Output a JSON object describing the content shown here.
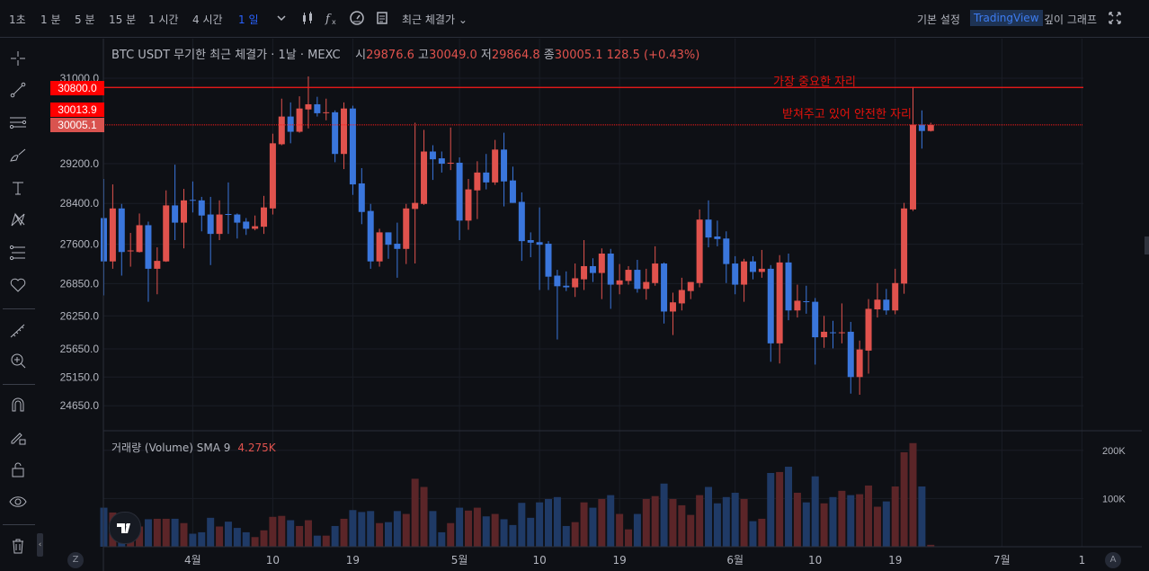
{
  "toolbar": {
    "timeframes": [
      "1초",
      "1 분",
      "5 분",
      "15 분",
      "1 시간",
      "4 시간",
      "1 일"
    ],
    "active_timeframe": "1 일",
    "price_type": "최근 체결가",
    "right": {
      "basic": "기본 설정",
      "tradingview": "TradingView",
      "depth": "깊이 그래프"
    },
    "icons": [
      "chevron-down-icon",
      "candles-icon",
      "fx-icon",
      "gauge-icon",
      "document-icon",
      "fullscreen-icon"
    ]
  },
  "left_tools": [
    "crosshair-icon",
    "trendline-icon",
    "parallel-lines-icon",
    "brush-icon",
    "text-icon",
    "pattern-icon",
    "forecast-icon",
    "heart-icon",
    "ruler-icon",
    "zoom-in-icon",
    "magnet-icon",
    "lock-drawing-icon",
    "unlock-icon",
    "eye-icon",
    "trash-icon"
  ],
  "legend": {
    "title": "BTC USDT 무기한 최근 체결가 · 1날 · MEXC",
    "open_label": "시",
    "open": "29876.6",
    "high_label": "고",
    "high": "30049.0",
    "low_label": "저",
    "low": "29864.8",
    "close_label": "종",
    "close": "30005.1",
    "change": "128.5 (+0.43%)"
  },
  "volume_legend": {
    "label": "거래량 (Volume) SMA 9",
    "value": "4.275K"
  },
  "annotations": {
    "top": "가장 중요한 자리",
    "middle": "받쳐주고 있어 안전한 자리"
  },
  "price_labels": {
    "line_level": "30800.0",
    "mid_level": "30013.9",
    "last_price": "30005.1"
  },
  "axis_buttons": {
    "left": "Z",
    "right": "A"
  },
  "colors": {
    "up": "#e0524d",
    "down": "#3a76dc",
    "vol_up": "#5b2528",
    "vol_down": "#1f3a66",
    "line": "#ff1a1a",
    "background": "#0e1015"
  },
  "chart_data": {
    "type": "candlestick",
    "y_scale": "log",
    "ylim": [
      24500,
      31050
    ],
    "y_ticks": [
      "31000.0",
      "29200.0",
      "28400.0",
      "27600.0",
      "26850.0",
      "26250.0",
      "25650.0",
      "25150.0",
      "24650.0"
    ],
    "x_ticks": [
      "4월",
      "10",
      "19",
      "5월",
      "10",
      "19",
      "6월",
      "10",
      "19",
      "7월",
      "1"
    ],
    "horizontal_lines": [
      30800.0,
      30005.1
    ],
    "grid": true,
    "ohlc": [
      [
        28110,
        28890,
        26630,
        27270
      ],
      [
        27270,
        28780,
        27130,
        28300
      ],
      [
        28300,
        28390,
        27000,
        27450
      ],
      [
        27470,
        27820,
        27170,
        27480
      ],
      [
        27450,
        28200,
        27440,
        27970
      ],
      [
        27970,
        28040,
        26510,
        27130
      ],
      [
        27130,
        27540,
        26650,
        27280
      ],
      [
        27270,
        28660,
        27260,
        28360
      ],
      [
        28360,
        29180,
        27680,
        28020
      ],
      [
        28020,
        28690,
        27520,
        28460
      ],
      [
        28470,
        28840,
        28220,
        28460
      ],
      [
        28460,
        28530,
        27850,
        28160
      ],
      [
        28180,
        28530,
        27200,
        27800
      ],
      [
        27800,
        28460,
        27680,
        28180
      ],
      [
        28190,
        28820,
        27800,
        28180
      ],
      [
        28180,
        28200,
        27710,
        28020
      ],
      [
        28040,
        28110,
        27780,
        27900
      ],
      [
        27900,
        28160,
        27870,
        27950
      ],
      [
        27940,
        28550,
        27800,
        28320
      ],
      [
        28300,
        29820,
        28180,
        29620
      ],
      [
        29600,
        30560,
        29580,
        30180
      ],
      [
        30180,
        30480,
        29620,
        29860
      ],
      [
        29860,
        30610,
        29840,
        30350
      ],
      [
        30330,
        31040,
        29930,
        30440
      ],
      [
        30440,
        30600,
        30180,
        30250
      ],
      [
        30260,
        30560,
        30100,
        30270
      ],
      [
        30270,
        30310,
        29230,
        29400
      ],
      [
        29400,
        30480,
        29090,
        30350
      ],
      [
        30350,
        30410,
        28570,
        28780
      ],
      [
        28800,
        29110,
        27990,
        28230
      ],
      [
        28250,
        28390,
        27130,
        27270
      ],
      [
        27270,
        27900,
        27170,
        27830
      ],
      [
        27830,
        27830,
        27320,
        27590
      ],
      [
        27610,
        28020,
        26960,
        27510
      ],
      [
        27510,
        28390,
        27220,
        28300
      ],
      [
        28290,
        30050,
        27230,
        28410
      ],
      [
        28390,
        29900,
        28370,
        29450
      ],
      [
        29450,
        29580,
        28870,
        29290
      ],
      [
        29310,
        29450,
        29020,
        29200
      ],
      [
        29210,
        29950,
        29070,
        29220
      ],
      [
        29220,
        29330,
        27680,
        28060
      ],
      [
        28060,
        28890,
        27880,
        28680
      ],
      [
        28660,
        29250,
        28090,
        29020
      ],
      [
        29020,
        29400,
        28680,
        28820
      ],
      [
        28820,
        29690,
        28770,
        29490
      ],
      [
        29490,
        29840,
        28340,
        28840
      ],
      [
        28860,
        29140,
        28410,
        28410
      ],
      [
        28430,
        28620,
        27280,
        27660
      ],
      [
        27680,
        27830,
        27350,
        27630
      ],
      [
        27640,
        28320,
        26730,
        27590
      ],
      [
        27610,
        27660,
        26730,
        26980
      ],
      [
        27000,
        27110,
        25820,
        26800
      ],
      [
        26810,
        27080,
        26710,
        26780
      ],
      [
        26780,
        27230,
        26600,
        26950
      ],
      [
        26930,
        27680,
        26730,
        27180
      ],
      [
        27180,
        27330,
        26880,
        27050
      ],
      [
        27050,
        27520,
        26560,
        27420
      ],
      [
        27420,
        27510,
        26380,
        26830
      ],
      [
        26830,
        27220,
        26650,
        26910
      ],
      [
        26900,
        27180,
        26830,
        27110
      ],
      [
        27110,
        27300,
        26680,
        26750
      ],
      [
        26750,
        27130,
        26550,
        26880
      ],
      [
        26860,
        27560,
        26810,
        27230
      ],
      [
        27230,
        27250,
        26110,
        26330
      ],
      [
        26330,
        26680,
        25900,
        26500
      ],
      [
        26480,
        26960,
        26350,
        26730
      ],
      [
        26710,
        26860,
        26560,
        26880
      ],
      [
        26860,
        28280,
        26780,
        28080
      ],
      [
        28080,
        28460,
        27540,
        27730
      ],
      [
        27750,
        28060,
        27560,
        27700
      ],
      [
        27710,
        27850,
        26860,
        27220
      ],
      [
        27230,
        27370,
        26650,
        26830
      ],
      [
        26830,
        27320,
        26510,
        27270
      ],
      [
        27270,
        27370,
        26930,
        27070
      ],
      [
        27070,
        27490,
        26960,
        27130
      ],
      [
        27130,
        27200,
        25420,
        25750
      ],
      [
        25750,
        27390,
        25390,
        27250
      ],
      [
        27250,
        27420,
        26170,
        26350
      ],
      [
        26350,
        26830,
        26220,
        26530
      ],
      [
        26520,
        26810,
        26290,
        26510
      ],
      [
        26510,
        26580,
        25370,
        25860
      ],
      [
        25860,
        26250,
        25670,
        25960
      ],
      [
        25950,
        26160,
        25660,
        25940
      ],
      [
        25940,
        26480,
        25750,
        25950
      ],
      [
        25960,
        26140,
        24860,
        25150
      ],
      [
        25150,
        25800,
        24840,
        25640
      ],
      [
        25620,
        26560,
        25210,
        26380
      ],
      [
        26370,
        26860,
        26220,
        26550
      ],
      [
        26550,
        26750,
        26270,
        26350
      ],
      [
        26350,
        27130,
        26280,
        26860
      ],
      [
        26850,
        28410,
        26660,
        28300
      ],
      [
        28280,
        30810,
        28250,
        30010
      ],
      [
        30010,
        30310,
        29510,
        29876.6
      ],
      [
        29876.6,
        30049.0,
        29864.8,
        30005.1
      ]
    ],
    "volume": {
      "y_ticks": [
        "200K",
        "100K"
      ],
      "values_k": [
        81,
        71,
        60,
        50,
        42,
        57,
        58,
        58,
        58,
        49,
        27,
        30,
        60,
        42,
        52,
        39,
        30,
        20,
        34,
        62,
        64,
        55,
        43,
        55,
        23,
        23,
        43,
        58,
        76,
        72,
        74,
        49,
        51,
        74,
        68,
        141,
        124,
        74,
        30,
        49,
        81,
        75,
        81,
        63,
        68,
        57,
        45,
        91,
        60,
        92,
        99,
        103,
        43,
        51,
        92,
        81,
        99,
        107,
        68,
        36,
        68,
        99,
        105,
        131,
        99,
        86,
        66,
        107,
        124,
        90,
        103,
        112,
        99,
        53,
        58,
        153,
        155,
        166,
        112,
        92,
        146,
        90,
        103,
        116,
        107,
        109,
        127,
        83,
        94,
        125,
        196,
        215,
        125,
        4
      ]
    }
  }
}
